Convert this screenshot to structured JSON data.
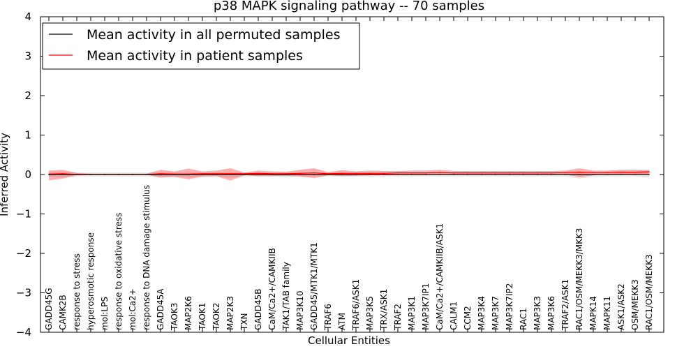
{
  "chart_data": {
    "type": "line",
    "title": "p38 MAPK signaling pathway -- 70 samples",
    "xlabel": "Cellular Entities",
    "ylabel": "Inferred Activity",
    "ylim": [
      -4,
      4
    ],
    "yticks": [
      -4,
      -3,
      -2,
      -1,
      0,
      1,
      2,
      3,
      4
    ],
    "ytick_labels": [
      "−4",
      "−3",
      "−2",
      "−1",
      "0",
      "1",
      "2",
      "3",
      "4"
    ],
    "legend_position": "top-left",
    "categories": [
      "GADD45G",
      "CAMK2B",
      "response to stress",
      "hyperosmotic response",
      "mol:LPS",
      "response to oxidative stress",
      "mol:Ca2+",
      "response to DNA damage stimulus",
      "GADD45A",
      "TAOK3",
      "MAP2K6",
      "TAOK1",
      "TAOK2",
      "MAP2K3",
      "TXN",
      "GADD45B",
      "CaM/Ca2+/CAMKIIB",
      "TAK1/TAB family",
      "MAP3K10",
      "GADD45/MTK1/MTK1",
      "TRAF6",
      "ATM",
      "TRAF6/ASK1",
      "MAP3K5",
      "TRX/ASK1",
      "TRAF2",
      "MAP3K1",
      "MAP3K7IP1",
      "CaM/Ca2+/CAMKIIB/ASK1",
      "CALM1",
      "CCM2",
      "MAP3K4",
      "MAP3K7",
      "MAP3K7IP2",
      "RAC1",
      "MAP3K3",
      "MAP3K6",
      "TRAF2/ASK1",
      "RAC1/OSM/MEKK3/MKK3",
      "MAPK14",
      "MAPK11",
      "ASK1/ASK2",
      "OSM/MEKK3",
      "RAC1/OSM/MEKK3"
    ],
    "series": [
      {
        "name": "Mean activity in all permuted samples",
        "color": "#000000",
        "values": [
          0,
          0,
          0,
          0,
          0,
          0,
          0,
          0,
          0,
          0,
          0,
          0,
          0,
          0,
          0,
          0,
          0,
          0,
          0,
          0,
          0,
          0,
          0,
          0,
          0,
          0,
          0,
          0,
          0,
          0,
          0,
          0,
          0,
          0,
          0,
          0,
          0,
          0,
          0,
          0,
          0,
          0,
          0,
          0
        ],
        "band_color": "#c8c8c8",
        "upper": [
          0.06,
          0.06,
          0.05,
          0.05,
          0.05,
          0.05,
          0.05,
          0.05,
          0.05,
          0.05,
          0.05,
          0.05,
          0.05,
          0.05,
          0.05,
          0.05,
          0.05,
          0.05,
          0.05,
          0.05,
          0.05,
          0.05,
          0.05,
          0.05,
          0.05,
          0.05,
          0.05,
          0.05,
          0.05,
          0.05,
          0.05,
          0.05,
          0.05,
          0.05,
          0.05,
          0.05,
          0.05,
          0.05,
          0.06,
          0.05,
          0.05,
          0.05,
          0.05,
          0.06
        ],
        "lower": [
          -0.06,
          -0.06,
          -0.05,
          -0.05,
          -0.05,
          -0.05,
          -0.05,
          -0.05,
          -0.06,
          -0.06,
          -0.06,
          -0.06,
          -0.05,
          -0.06,
          -0.05,
          -0.05,
          -0.05,
          -0.08,
          -0.05,
          -0.05,
          -0.05,
          -0.05,
          -0.05,
          -0.05,
          -0.05,
          -0.05,
          -0.05,
          -0.05,
          -0.05,
          -0.05,
          -0.05,
          -0.05,
          -0.05,
          -0.05,
          -0.05,
          -0.05,
          -0.05,
          -0.05,
          -0.1,
          -0.06,
          -0.05,
          -0.05,
          -0.05,
          -0.08
        ]
      },
      {
        "name": "Mean activity in patient samples",
        "color": "#ff0000",
        "values": [
          0.01,
          0.02,
          0.0,
          0.0,
          0.0,
          0.0,
          0.0,
          0.0,
          0.02,
          0.01,
          0.01,
          0.02,
          0.02,
          0.02,
          0.02,
          0.03,
          0.02,
          0.02,
          0.03,
          0.04,
          0.02,
          0.03,
          0.03,
          0.03,
          0.03,
          0.04,
          0.04,
          0.04,
          0.05,
          0.04,
          0.04,
          0.04,
          0.04,
          0.04,
          0.04,
          0.04,
          0.04,
          0.05,
          0.06,
          0.05,
          0.05,
          0.06,
          0.06,
          0.07
        ],
        "band_color": "#ff0000",
        "upper": [
          0.1,
          0.12,
          0.04,
          0.02,
          0.02,
          0.02,
          0.02,
          0.02,
          0.12,
          0.08,
          0.15,
          0.08,
          0.1,
          0.16,
          0.05,
          0.1,
          0.08,
          0.07,
          0.12,
          0.16,
          0.06,
          0.11,
          0.08,
          0.1,
          0.09,
          0.09,
          0.1,
          0.1,
          0.12,
          0.09,
          0.09,
          0.09,
          0.09,
          0.09,
          0.09,
          0.09,
          0.09,
          0.1,
          0.16,
          0.1,
          0.1,
          0.12,
          0.12,
          0.12
        ],
        "lower": [
          -0.15,
          -0.1,
          -0.02,
          -0.01,
          -0.01,
          -0.01,
          -0.01,
          -0.01,
          -0.08,
          -0.06,
          -0.12,
          -0.05,
          -0.04,
          -0.15,
          -0.02,
          -0.04,
          -0.04,
          -0.03,
          -0.05,
          -0.09,
          -0.02,
          -0.04,
          -0.03,
          -0.02,
          -0.02,
          -0.01,
          -0.01,
          -0.01,
          0.0,
          0.0,
          0.0,
          0.0,
          0.0,
          0.0,
          0.0,
          0.0,
          0.0,
          0.0,
          -0.06,
          -0.02,
          0.0,
          0.0,
          0.0,
          0.0
        ]
      }
    ]
  }
}
